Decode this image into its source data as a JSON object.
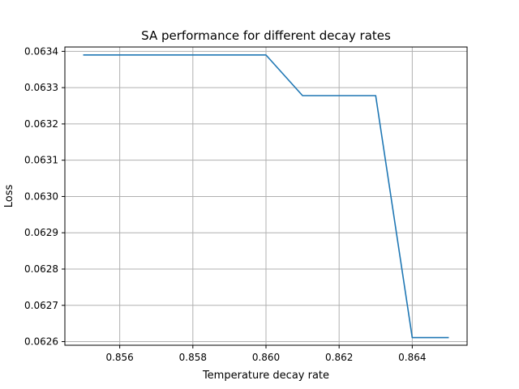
{
  "chart_data": {
    "type": "line",
    "title": "SA performance for different decay rates",
    "xlabel": "Temperature decay rate",
    "ylabel": "Loss",
    "xlim": [
      0.8545,
      0.8655
    ],
    "ylim": [
      0.06259,
      0.063412
    ],
    "xticks": [
      0.856,
      0.858,
      0.86,
      0.862,
      0.864
    ],
    "xtick_labels": [
      "0.856",
      "0.858",
      "0.860",
      "0.862",
      "0.864"
    ],
    "yticks": [
      0.0626,
      0.0627,
      0.0628,
      0.0629,
      0.063,
      0.0631,
      0.0632,
      0.0633,
      0.0634
    ],
    "ytick_labels": [
      "0.0626",
      "0.0627",
      "0.0628",
      "0.0629",
      "0.0630",
      "0.0631",
      "0.0632",
      "0.0633",
      "0.0634"
    ],
    "grid": true,
    "series": [
      {
        "color": "#1f77b4",
        "x": [
          0.855,
          0.856,
          0.857,
          0.858,
          0.859,
          0.86,
          0.861,
          0.862,
          0.863,
          0.864,
          0.865
        ],
        "y": [
          0.06339,
          0.06339,
          0.06339,
          0.06339,
          0.06339,
          0.06339,
          0.063278,
          0.063278,
          0.063278,
          0.062611,
          0.062611
        ]
      }
    ]
  }
}
